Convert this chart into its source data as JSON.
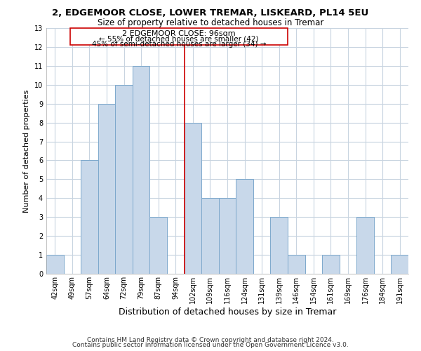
{
  "title": "2, EDGEMOOR CLOSE, LOWER TREMAR, LISKEARD, PL14 5EU",
  "subtitle": "Size of property relative to detached houses in Tremar",
  "xlabel": "Distribution of detached houses by size in Tremar",
  "ylabel": "Number of detached properties",
  "footer_line1": "Contains HM Land Registry data © Crown copyright and database right 2024.",
  "footer_line2": "Contains public sector information licensed under the Open Government Licence v3.0.",
  "bar_labels": [
    "42sqm",
    "49sqm",
    "57sqm",
    "64sqm",
    "72sqm",
    "79sqm",
    "87sqm",
    "94sqm",
    "102sqm",
    "109sqm",
    "116sqm",
    "124sqm",
    "131sqm",
    "139sqm",
    "146sqm",
    "154sqm",
    "161sqm",
    "169sqm",
    "176sqm",
    "184sqm",
    "191sqm"
  ],
  "bar_values": [
    1,
    0,
    6,
    9,
    10,
    11,
    3,
    0,
    8,
    4,
    4,
    5,
    0,
    3,
    1,
    0,
    1,
    0,
    3,
    0,
    1
  ],
  "bar_color": "#c8d8ea",
  "bar_edge_color": "#7da8cc",
  "property_line_x": 7.5,
  "property_line_color": "#cc0000",
  "annotation_title": "2 EDGEMOOR CLOSE: 96sqm",
  "annotation_line1": "← 55% of detached houses are smaller (42)",
  "annotation_line2": "45% of semi-detached houses are larger (34) →",
  "annotation_box_color": "#ffffff",
  "annotation_box_edge_color": "#cc0000",
  "ylim": [
    0,
    13
  ],
  "yticks": [
    0,
    1,
    2,
    3,
    4,
    5,
    6,
    7,
    8,
    9,
    10,
    11,
    12,
    13
  ],
  "grid_color": "#c8d4e0",
  "background_color": "#ffffff",
  "title_fontsize": 9.5,
  "subtitle_fontsize": 8.5,
  "ylabel_fontsize": 8,
  "xlabel_fontsize": 9,
  "tick_fontsize": 7,
  "annot_title_fontsize": 8,
  "annot_text_fontsize": 7.5,
  "footer_fontsize": 6.5
}
